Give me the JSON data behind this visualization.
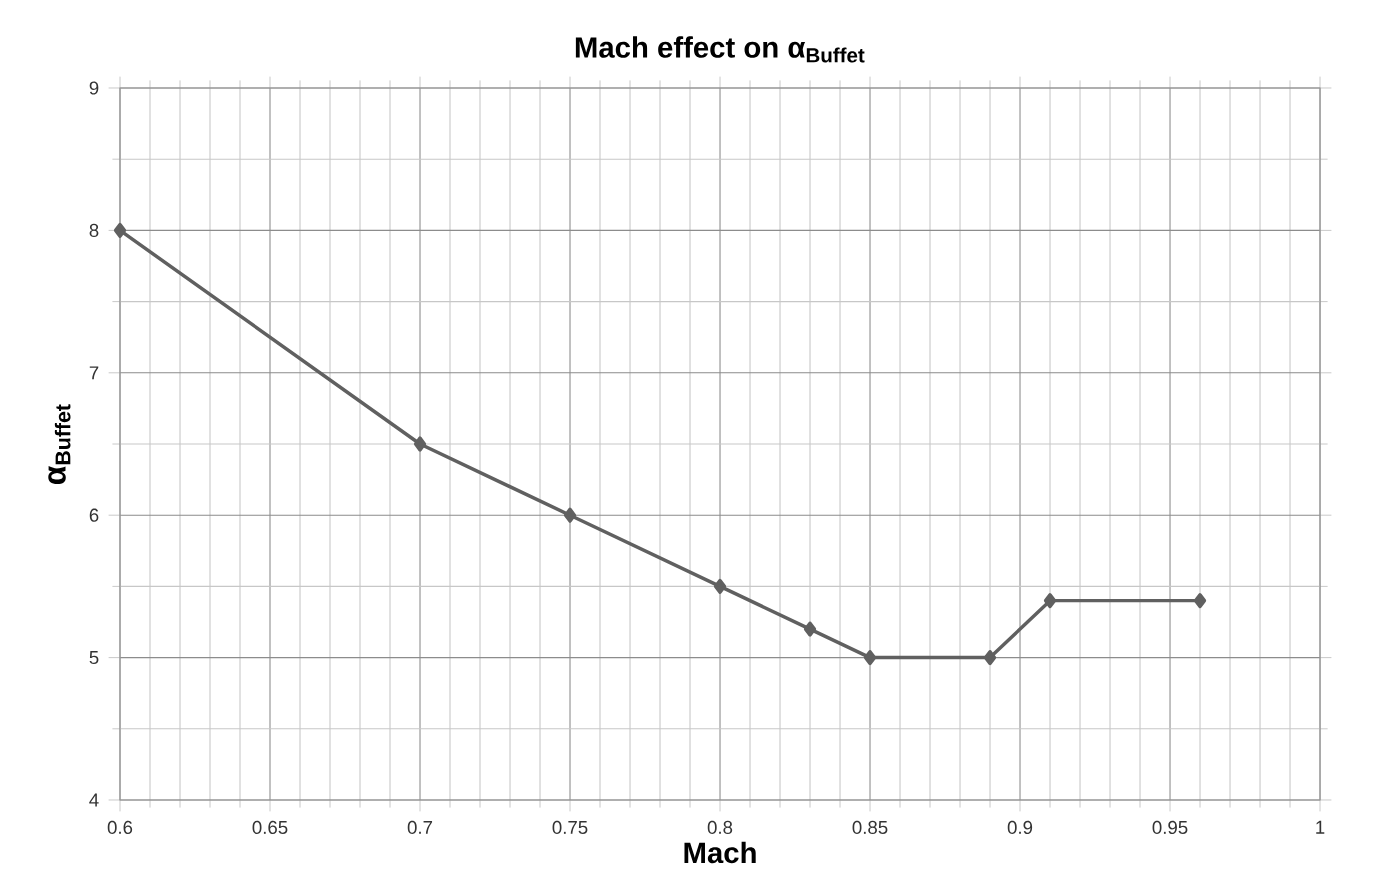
{
  "chart_data": {
    "type": "line",
    "title": "**Mach effect on α$_{Buffet}$**",
    "xlabel": "Mach",
    "ylabel": "α$_{Buffet}$",
    "x": [
      0.6,
      0.7,
      0.75,
      0.8,
      0.83,
      0.85,
      0.89,
      0.91,
      0.96
    ],
    "series": [
      {
        "color": "#606060",
        "values": [
          8,
          6.5,
          6,
          5.5,
          5.2,
          5,
          5,
          5.4,
          5.4
        ]
      }
    ],
    "xlim": [
      0.6,
      1
    ],
    "xticks": [
      0.6,
      0.65,
      0.7,
      0.75,
      0.8,
      0.85,
      0.9,
      0.95,
      1
    ],
    "ylim": [
      4,
      9
    ],
    "yticks": [
      4,
      5,
      6,
      7,
      8,
      9
    ],
    "grid": true,
    "marker": "diamond",
    "line_style": "solid"
  }
}
